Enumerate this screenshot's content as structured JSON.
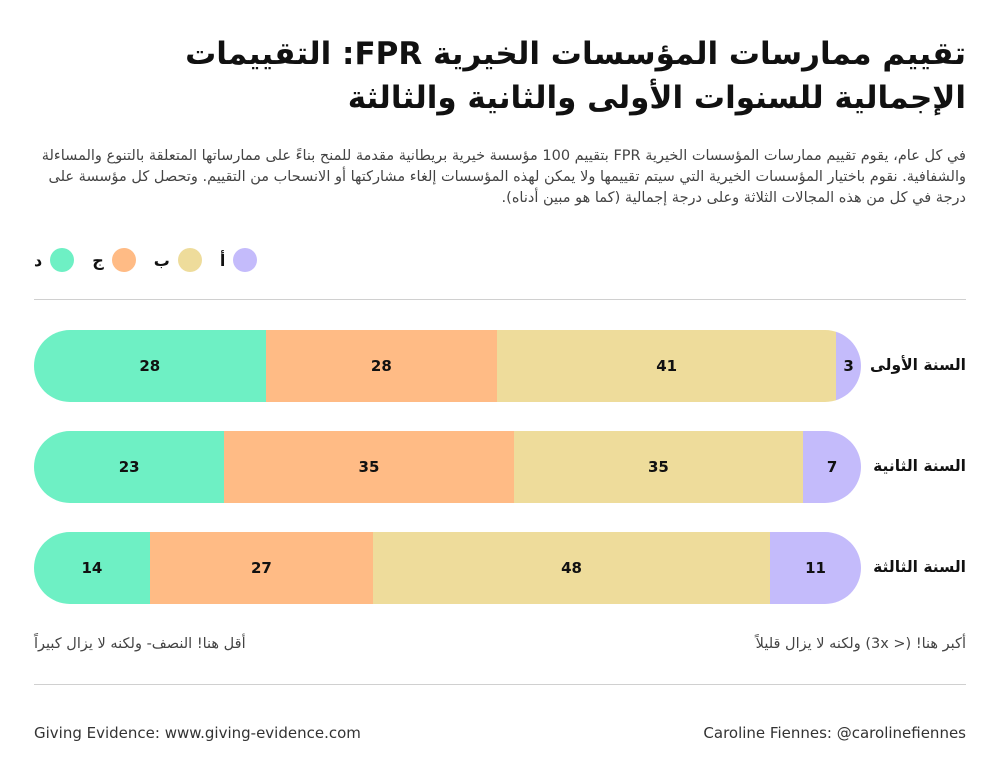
{
  "title": "تقييم ممارسات المؤسسات الخيرية FPR:  التقييمات الإجمالية للسنوات الأولى والثانية والثالثة",
  "description": "في كل عام، يقوم تقييم ممارسات المؤسسات الخيرية FPR بتقييم 100 مؤسسة خيرية بريطانية مقدمة للمنح بناءً على ممارساتها المتعلقة بالتنوع والمساءلة والشفافية. نقوم باختيار المؤسسات الخيرية التي سيتم تقييمها ولا يمكن لهذه المؤسسات إلغاء مشاركتها أو الانسحاب من التقييم. وتحصل كل مؤسسة على درجة في كل من هذه المجالات الثلاثة وعلى درجة إجمالية (كما هو مبين أدناه).",
  "legend": [
    {
      "label": "أ",
      "color": "#c4bbfb"
    },
    {
      "label": "ب",
      "color": "#eedc9b"
    },
    {
      "label": "ج",
      "color": "#ffbb85"
    },
    {
      "label": "د",
      "color": "#6ef0c4"
    }
  ],
  "annotations": {
    "right_note": "أكبر هنا! (< 3x)   ولكنه لا يزال قليلاً",
    "left_note": "أقل هنا! النصف- ولكنه لا يزال كبيراً"
  },
  "footer": {
    "left": "Giving Evidence: www.giving-evidence.com",
    "right": "Caroline Fiennes: @carolinefiennes"
  },
  "chart_data": {
    "type": "bar",
    "orientation": "horizontal-stacked-100",
    "categories": [
      "السنة الأولى",
      "السنة الثانية",
      "السنة الثالثة"
    ],
    "series": [
      {
        "name": "أ",
        "color": "#c4bbfb",
        "values": [
          3,
          7,
          11
        ]
      },
      {
        "name": "ب",
        "color": "#eedc9b",
        "values": [
          41,
          35,
          48
        ]
      },
      {
        "name": "ج",
        "color": "#ffbb85",
        "values": [
          28,
          35,
          27
        ]
      },
      {
        "name": "د",
        "color": "#6ef0c4",
        "values": [
          28,
          23,
          14
        ]
      }
    ],
    "legend_position": "top-left"
  }
}
